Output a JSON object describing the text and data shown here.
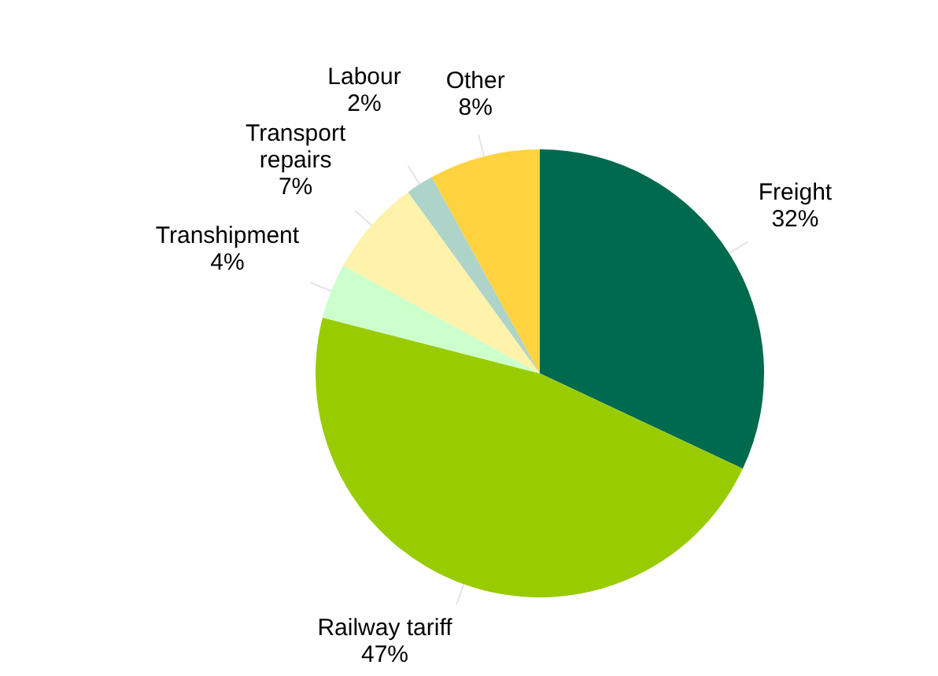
{
  "chart_data": {
    "type": "pie",
    "categories": [
      "Freight",
      "Railway tariff",
      "Transhipment",
      "Transport repairs",
      "Labour",
      "Other"
    ],
    "values": [
      32,
      47,
      4,
      7,
      2,
      8
    ],
    "value_labels": [
      "32%",
      "47%",
      "4%",
      "7%",
      "2%",
      "8%"
    ],
    "colors": [
      "#006a4e",
      "#99cc00",
      "#ccffcc",
      "#fff2aa",
      "#aed3c8",
      "#ffd33f"
    ],
    "legend": false
  }
}
